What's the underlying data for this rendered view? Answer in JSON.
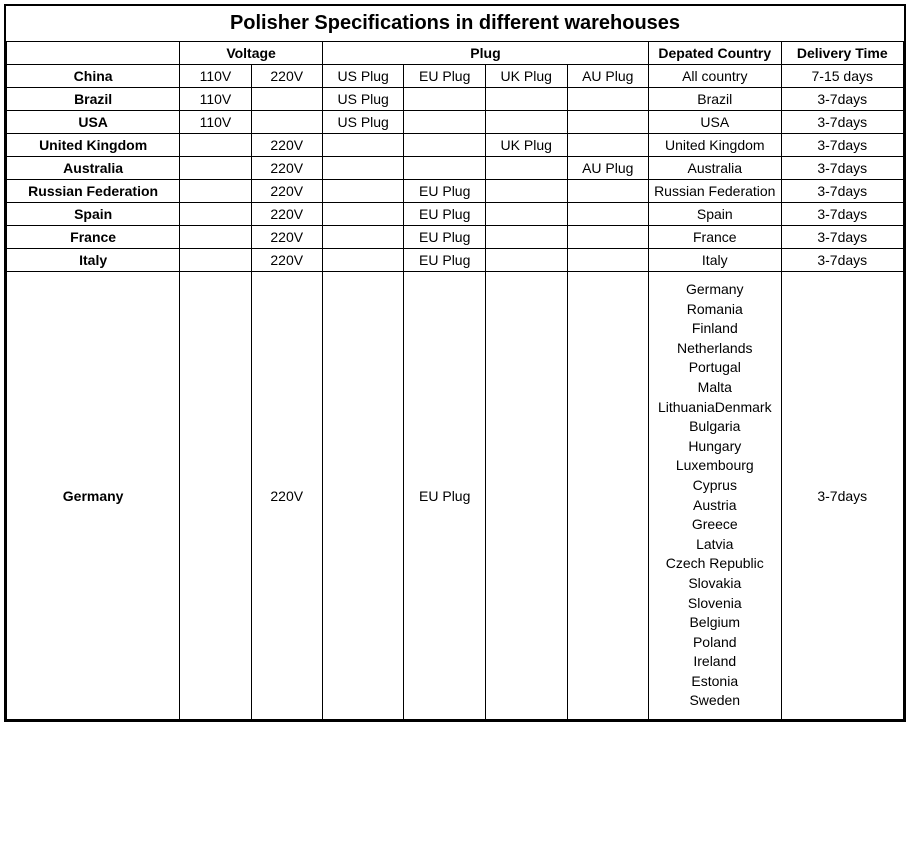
{
  "title": "Polisher Specifications in different warehouses",
  "headers": {
    "voltage": "Voltage",
    "plug": "Plug",
    "departed": "Depated Country",
    "delivery": "Delivery Time"
  },
  "rows": [
    {
      "label": "China",
      "v110": "110V",
      "v220": "220V",
      "us": "US Plug",
      "eu": "EU Plug",
      "uk": "UK Plug",
      "au": "AU Plug",
      "countries": "All country",
      "delivery": "7-15 days"
    },
    {
      "label": "Brazil",
      "v110": "110V",
      "v220": "",
      "us": "US Plug",
      "eu": "",
      "uk": "",
      "au": "",
      "countries": "Brazil",
      "delivery": "3-7days"
    },
    {
      "label": "USA",
      "v110": "110V",
      "v220": "",
      "us": "US Plug",
      "eu": "",
      "uk": "",
      "au": "",
      "countries": "USA",
      "delivery": "3-7days"
    },
    {
      "label": "United Kingdom",
      "v110": "",
      "v220": "220V",
      "us": "",
      "eu": "",
      "uk": "UK Plug",
      "au": "",
      "countries": "United Kingdom",
      "delivery": "3-7days"
    },
    {
      "label": "Australia",
      "v110": "",
      "v220": "220V",
      "us": "",
      "eu": "",
      "uk": "",
      "au": "AU Plug",
      "countries": "Australia",
      "delivery": "3-7days"
    },
    {
      "label": "Russian Federation",
      "v110": "",
      "v220": "220V",
      "us": "",
      "eu": "EU Plug",
      "uk": "",
      "au": "",
      "countries": "Russian Federation",
      "delivery": "3-7days"
    },
    {
      "label": "Spain",
      "v110": "",
      "v220": "220V",
      "us": "",
      "eu": "EU Plug",
      "uk": "",
      "au": "",
      "countries": "Spain",
      "delivery": "3-7days"
    },
    {
      "label": "France",
      "v110": "",
      "v220": "220V",
      "us": "",
      "eu": "EU Plug",
      "uk": "",
      "au": "",
      "countries": "France",
      "delivery": "3-7days"
    },
    {
      "label": "Italy",
      "v110": "",
      "v220": "220V",
      "us": "",
      "eu": "EU Plug",
      "uk": "",
      "au": "",
      "countries": "Italy",
      "delivery": "3-7days"
    }
  ],
  "germany": {
    "label": "Germany",
    "v110": "",
    "v220": "220V",
    "us": "",
    "eu": "EU Plug",
    "uk": "",
    "au": "",
    "countries": [
      "Germany",
      "Romania",
      "Finland",
      "Netherlands",
      "Portugal",
      "Malta",
      "LithuaniaDenmark",
      "Bulgaria",
      "Hungary",
      "Luxembourg",
      "Cyprus",
      "Austria",
      "Greece",
      "Latvia",
      "Czech Republic",
      "Slovakia",
      "Slovenia",
      "Belgium",
      "Poland",
      "Ireland",
      "Estonia",
      "Sweden"
    ],
    "delivery": "3-7days"
  },
  "styles": {
    "background_color": "#ffffff",
    "border_color": "#000000",
    "title_fontsize": 20,
    "cell_fontsize": 14,
    "font_family": "Arial"
  }
}
